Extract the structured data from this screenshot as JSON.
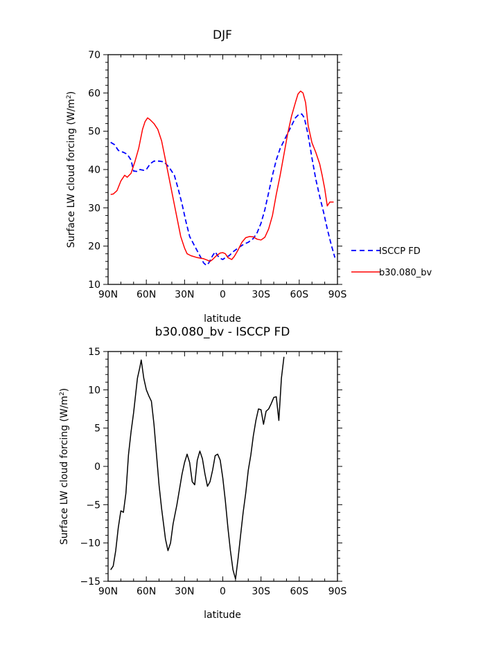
{
  "chart_data": [
    {
      "type": "line",
      "title": "DJF",
      "xlabel": "latitude",
      "ylabel": "Surface LW cloud forcing (W/m²)",
      "ylabel_parts": {
        "pre": "Surface LW cloud forcing (W/m",
        "sup": "2",
        "post": ")"
      },
      "xlim": [
        -90,
        90
      ],
      "ylim": [
        10,
        70
      ],
      "x_ticks": [
        -90,
        -60,
        -30,
        0,
        30,
        60,
        90
      ],
      "x_tick_labels": [
        "90N",
        "60N",
        "30N",
        "0",
        "30S",
        "60S",
        "90S"
      ],
      "y_ticks": [
        10,
        20,
        30,
        40,
        50,
        60,
        70
      ],
      "y_tick_labels": [
        "10",
        "20",
        "30",
        "40",
        "50",
        "60",
        "70"
      ],
      "legend_position": "outside-right",
      "series": [
        {
          "name": "ISCCP FD",
          "color": "#0000ff",
          "dash": "dashed",
          "points": [
            [
              -88,
              47.1
            ],
            [
              -85,
              46.5
            ],
            [
              -82,
              45
            ],
            [
              -78,
              44.5
            ],
            [
              -75,
              44
            ],
            [
              -72,
              42.5
            ],
            [
              -70,
              39.6
            ],
            [
              -67,
              39.5
            ],
            [
              -65,
              40
            ],
            [
              -62,
              39.8
            ],
            [
              -60,
              40
            ],
            [
              -57,
              41.5
            ],
            [
              -54,
              42.2
            ],
            [
              -50,
              42.2
            ],
            [
              -46,
              42
            ],
            [
              -42,
              40.5
            ],
            [
              -38,
              38.5
            ],
            [
              -35,
              35
            ],
            [
              -32,
              31
            ],
            [
              -29,
              26.5
            ],
            [
              -26,
              22.5
            ],
            [
              -22,
              20
            ],
            [
              -18,
              17.5
            ],
            [
              -15,
              15.6
            ],
            [
              -13,
              15
            ],
            [
              -11,
              15.6
            ],
            [
              -8,
              17.5
            ],
            [
              -6,
              18.5
            ],
            [
              -4,
              17.5
            ],
            [
              -2,
              16.8
            ],
            [
              0,
              16.5
            ],
            [
              2,
              17
            ],
            [
              5,
              17.5
            ],
            [
              8,
              18.5
            ],
            [
              12,
              19.5
            ],
            [
              16,
              20.4
            ],
            [
              20,
              21
            ],
            [
              24,
              22
            ],
            [
              27,
              23.5
            ],
            [
              30,
              26
            ],
            [
              33,
              29.5
            ],
            [
              36,
              34
            ],
            [
              39,
              38.5
            ],
            [
              42,
              42.5
            ],
            [
              45,
              45.5
            ],
            [
              48,
              47.5
            ],
            [
              51,
              49.5
            ],
            [
              54,
              51.5
            ],
            [
              57,
              53.5
            ],
            [
              60,
              54.5
            ],
            [
              62,
              54.5
            ],
            [
              64,
              53.5
            ],
            [
              67,
              49
            ],
            [
              70,
              43
            ],
            [
              73,
              37.5
            ],
            [
              76,
              33
            ],
            [
              79,
              29
            ],
            [
              82,
              24.5
            ],
            [
              85,
              20.5
            ],
            [
              88,
              17
            ]
          ]
        },
        {
          "name": "b30.080_bv",
          "color": "#ff0000",
          "dash": "solid",
          "points": [
            [
              -88,
              33.5
            ],
            [
              -86,
              33.6
            ],
            [
              -83,
              34.5
            ],
            [
              -80,
              37
            ],
            [
              -77,
              38.5
            ],
            [
              -75,
              38
            ],
            [
              -72,
              39
            ],
            [
              -69,
              42
            ],
            [
              -66,
              45.5
            ],
            [
              -63,
              50.5
            ],
            [
              -61,
              52.5
            ],
            [
              -59,
              53.5
            ],
            [
              -57,
              53
            ],
            [
              -54,
              52
            ],
            [
              -51,
              50.5
            ],
            [
              -48,
              47.5
            ],
            [
              -45,
              42.5
            ],
            [
              -42,
              37.5
            ],
            [
              -39,
              32.5
            ],
            [
              -36,
              27.5
            ],
            [
              -33,
              22.5
            ],
            [
              -30,
              19.5
            ],
            [
              -28,
              18
            ],
            [
              -25,
              17.5
            ],
            [
              -20,
              17
            ],
            [
              -15,
              16.7
            ],
            [
              -12,
              16.3
            ],
            [
              -10,
              16
            ],
            [
              -8,
              16.5
            ],
            [
              -5,
              17.5
            ],
            [
              -2,
              18.2
            ],
            [
              0,
              18.3
            ],
            [
              2,
              18
            ],
            [
              4,
              17
            ],
            [
              7,
              16.5
            ],
            [
              9,
              17.3
            ],
            [
              12,
              19
            ],
            [
              15,
              21
            ],
            [
              18,
              22.2
            ],
            [
              21,
              22.5
            ],
            [
              24,
              22.4
            ],
            [
              27,
              21.8
            ],
            [
              30,
              21.6
            ],
            [
              33,
              22.3
            ],
            [
              36,
              24.5
            ],
            [
              39,
              28
            ],
            [
              42,
              33.5
            ],
            [
              45,
              38.5
            ],
            [
              48,
              44
            ],
            [
              51,
              49.5
            ],
            [
              54,
              54
            ],
            [
              57,
              57.5
            ],
            [
              59,
              59.7
            ],
            [
              61,
              60.5
            ],
            [
              63,
              60
            ],
            [
              65,
              57.5
            ],
            [
              67,
              51.5
            ],
            [
              70,
              47
            ],
            [
              73,
              44.5
            ],
            [
              76,
              41.5
            ],
            [
              78,
              38.5
            ],
            [
              80,
              35
            ],
            [
              82,
              30.5
            ],
            [
              84,
              31.5
            ],
            [
              87,
              31.5
            ]
          ]
        }
      ]
    },
    {
      "type": "line",
      "title": "b30.080_bv - ISCCP FD",
      "xlabel": "latitude",
      "ylabel": "Surface LW cloud forcing (W/m²)",
      "ylabel_parts": {
        "pre": "Surface LW cloud forcing (W/m",
        "sup": "2",
        "post": ")"
      },
      "xlim": [
        -90,
        90
      ],
      "ylim": [
        -15,
        15
      ],
      "x_ticks": [
        -90,
        -60,
        -30,
        0,
        30,
        60,
        90
      ],
      "x_tick_labels": [
        "90N",
        "60N",
        "30N",
        "0",
        "30S",
        "60S",
        "90S"
      ],
      "y_ticks": [
        -15,
        -10,
        -5,
        0,
        5,
        10,
        15
      ],
      "y_tick_labels": [
        "−15",
        "−10",
        "−5",
        "0",
        "5",
        "10",
        "15"
      ],
      "series": [
        {
          "name": "",
          "color": "#000000",
          "dash": "solid",
          "points": [
            [
              -88,
              -13.5
            ],
            [
              -86,
              -13
            ],
            [
              -84,
              -11
            ],
            [
              -82,
              -8
            ],
            [
              -80,
              -5.8
            ],
            [
              -78,
              -6
            ],
            [
              -76,
              -3.5
            ],
            [
              -74,
              1.5
            ],
            [
              -72,
              4.5
            ],
            [
              -70,
              7
            ],
            [
              -67,
              11.5
            ],
            [
              -65,
              13
            ],
            [
              -64,
              13.9
            ],
            [
              -62,
              11.5
            ],
            [
              -60,
              10
            ],
            [
              -58,
              9.2
            ],
            [
              -56,
              8.5
            ],
            [
              -54,
              5.5
            ],
            [
              -52,
              1.5
            ],
            [
              -50,
              -2.5
            ],
            [
              -48,
              -5.5
            ],
            [
              -45,
              -9.5
            ],
            [
              -43,
              -11
            ],
            [
              -41,
              -10
            ],
            [
              -39,
              -7.5
            ],
            [
              -36,
              -5
            ],
            [
              -34,
              -3
            ],
            [
              -32,
              -1
            ],
            [
              -30,
              0.5
            ],
            [
              -28,
              1.6
            ],
            [
              -26,
              0.5
            ],
            [
              -24,
              -2
            ],
            [
              -22,
              -2.4
            ],
            [
              -20,
              0.8
            ],
            [
              -18,
              2
            ],
            [
              -16,
              1
            ],
            [
              -14,
              -1
            ],
            [
              -12,
              -2.6
            ],
            [
              -10,
              -2
            ],
            [
              -8,
              -0.5
            ],
            [
              -6,
              1.4
            ],
            [
              -4,
              1.6
            ],
            [
              -2,
              0.8
            ],
            [
              0,
              -1.5
            ],
            [
              2,
              -4.5
            ],
            [
              4,
              -8
            ],
            [
              6,
              -11
            ],
            [
              8,
              -13.5
            ],
            [
              10,
              -14.7
            ],
            [
              12,
              -12
            ],
            [
              14,
              -9
            ],
            [
              16,
              -6
            ],
            [
              18,
              -3.5
            ],
            [
              20,
              -0.5
            ],
            [
              22,
              1.5
            ],
            [
              24,
              4
            ],
            [
              26,
              6
            ],
            [
              28,
              7.5
            ],
            [
              30,
              7.4
            ],
            [
              32,
              5.5
            ],
            [
              34,
              7.2
            ],
            [
              36,
              7.5
            ],
            [
              38,
              8.2
            ],
            [
              40,
              9
            ],
            [
              42,
              9.1
            ],
            [
              44,
              6
            ],
            [
              46,
              11.5
            ],
            [
              48,
              14.3
            ]
          ]
        }
      ]
    }
  ]
}
